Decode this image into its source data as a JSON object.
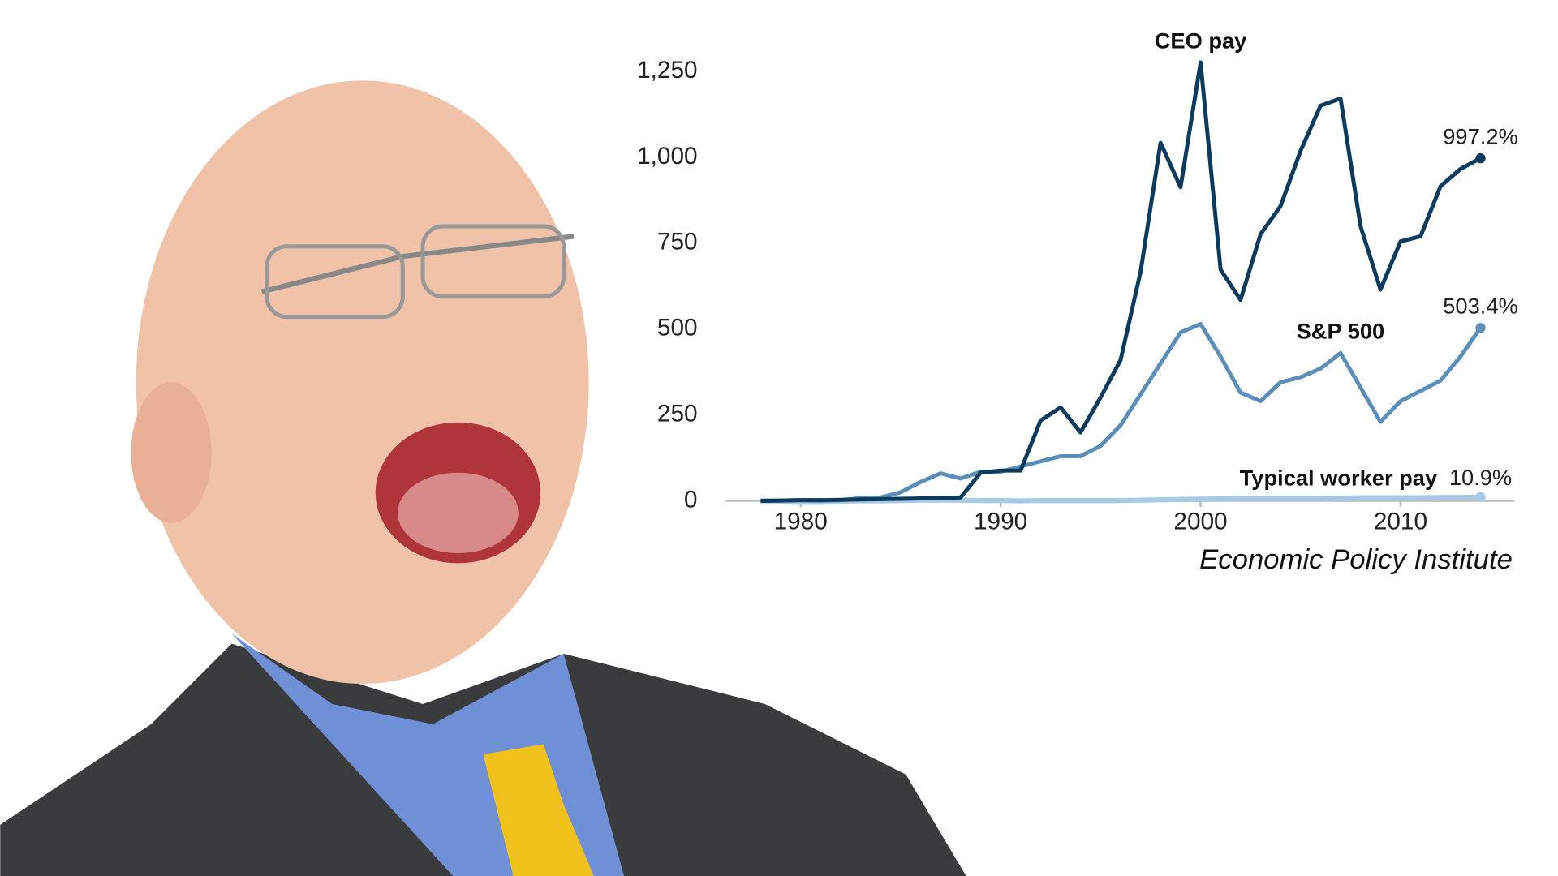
{
  "chart_data": {
    "type": "line",
    "source": "Economic Policy Institute",
    "x": [
      1978,
      1979,
      1980,
      1981,
      1982,
      1983,
      1984,
      1985,
      1986,
      1987,
      1988,
      1989,
      1990,
      1991,
      1992,
      1993,
      1994,
      1995,
      1996,
      1997,
      1998,
      1999,
      2000,
      2001,
      2002,
      2003,
      2004,
      2005,
      2006,
      2007,
      2008,
      2009,
      2010,
      2011,
      2012,
      2013,
      2014
    ],
    "series": [
      {
        "name": "CEO pay",
        "color": "#0d3b5e",
        "values": [
          0,
          1,
          2,
          2,
          3,
          4,
          5,
          6,
          7,
          8,
          10,
          82,
          88,
          88,
          234,
          272,
          199,
          301,
          410,
          667,
          1042,
          913,
          1276,
          673,
          585,
          776,
          858,
          1019,
          1150,
          1171,
          799,
          615,
          755,
          770,
          916,
          966,
          997.2
        ],
        "value_labels": [
          null,
          null,
          null,
          null,
          null,
          null,
          null,
          null,
          null,
          null,
          null,
          null,
          null,
          null,
          null,
          null,
          null,
          null,
          null,
          null,
          null,
          null,
          null,
          null,
          null,
          null,
          null,
          null,
          null,
          null,
          null,
          null,
          null,
          null,
          null,
          null,
          "997.2%"
        ]
      },
      {
        "name": "S&P 500",
        "color": "#5b8fb9",
        "values": [
          0,
          1,
          2,
          1,
          2,
          8,
          10,
          25,
          55,
          80,
          65,
          85,
          85,
          100,
          115,
          130,
          130,
          160,
          220,
          310,
          400,
          490,
          515,
          420,
          315,
          290,
          345,
          360,
          385,
          430,
          330,
          230,
          290,
          320,
          350,
          420,
          503.4
        ],
        "value_labels": [
          null,
          null,
          null,
          null,
          null,
          null,
          null,
          null,
          null,
          null,
          null,
          null,
          null,
          null,
          null,
          null,
          null,
          null,
          null,
          null,
          null,
          null,
          null,
          null,
          null,
          null,
          null,
          null,
          null,
          null,
          null,
          null,
          null,
          null,
          null,
          null,
          "503.4%"
        ]
      },
      {
        "name": "Typical worker pay",
        "color": "#a9c8e6",
        "values": [
          0,
          -1,
          -2,
          -2,
          -1,
          0,
          0,
          1,
          2,
          2,
          2,
          1,
          1,
          0,
          1,
          1,
          1,
          1,
          1,
          2,
          3,
          4,
          5,
          6,
          7,
          7,
          7,
          7,
          7,
          8,
          9,
          9,
          9,
          9,
          10,
          10,
          10.9
        ],
        "value_labels": [
          null,
          null,
          null,
          null,
          null,
          null,
          null,
          null,
          null,
          null,
          null,
          null,
          null,
          null,
          null,
          null,
          null,
          null,
          null,
          null,
          null,
          null,
          null,
          null,
          null,
          null,
          null,
          null,
          null,
          null,
          null,
          null,
          null,
          null,
          null,
          null,
          "10.9%"
        ]
      }
    ],
    "xlim": [
      1976.2,
      2015.7
    ],
    "xticks": [
      1980,
      1990,
      2000,
      2010
    ],
    "ylim": [
      0,
      1300
    ],
    "yticks": [
      0,
      250,
      500,
      750,
      {
        "value": 1000,
        "label": "1,000"
      },
      {
        "value": 1250,
        "label": "1,250"
      }
    ]
  }
}
